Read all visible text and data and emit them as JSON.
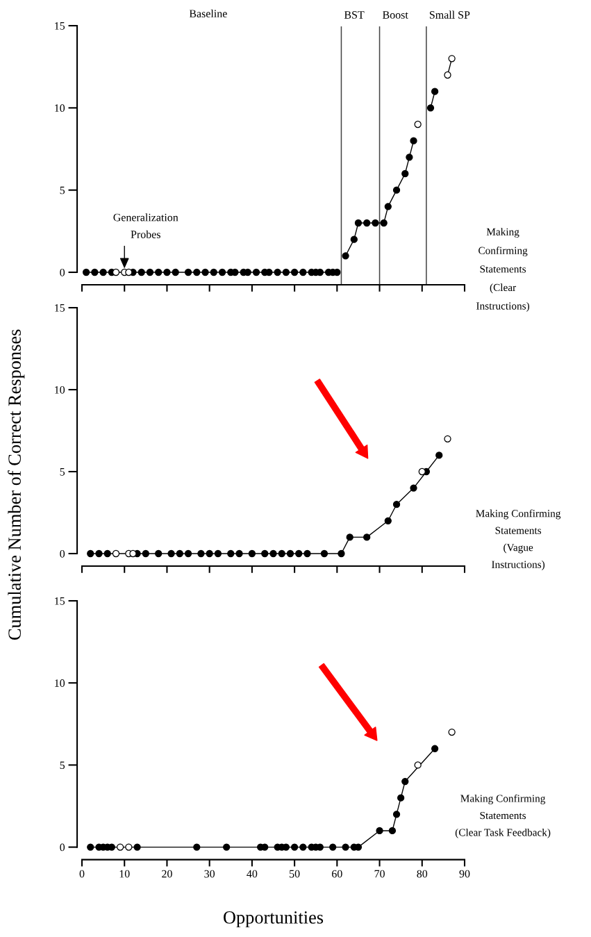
{
  "chart_data": [
    {
      "type": "line",
      "xlim": [
        0,
        90
      ],
      "xticks": [
        0,
        10,
        20,
        30,
        40,
        50,
        60,
        70,
        80,
        90
      ],
      "ylim": [
        0,
        15
      ],
      "yticks": [
        0,
        5,
        10,
        15
      ],
      "tick_labels": "y",
      "marker": "circle",
      "line_style": "solid",
      "grid": false,
      "legend": false,
      "series": [
        {
          "color": "#000000",
          "x": [
            1,
            3,
            5,
            7,
            12,
            14,
            16,
            18,
            20,
            22,
            25,
            27,
            29,
            31,
            33,
            35,
            36,
            38,
            39,
            41,
            43,
            44,
            46,
            48,
            50,
            52,
            54,
            55,
            56,
            58,
            59,
            60
          ],
          "values": [
            0,
            0,
            0,
            0,
            0,
            0,
            0,
            0,
            0,
            0,
            0,
            0,
            0,
            0,
            0,
            0,
            0,
            0,
            0,
            0,
            0,
            0,
            0,
            0,
            0,
            0,
            0,
            0,
            0,
            0,
            0,
            0
          ]
        },
        {
          "color": "#000000",
          "x": [
            62,
            64,
            65,
            67,
            69,
            71,
            72,
            74,
            76,
            77,
            78
          ],
          "values": [
            1,
            2,
            3,
            3,
            3,
            3,
            4,
            5,
            6,
            7,
            8
          ]
        },
        {
          "color": "#000000",
          "x": [
            82,
            83
          ],
          "values": [
            10,
            11
          ]
        },
        {
          "type": "scatter",
          "color": "#ffffff",
          "x": [
            8,
            10,
            11,
            79
          ],
          "values": [
            0,
            0,
            0,
            9
          ]
        },
        {
          "color": "#ffffff",
          "x": [
            86,
            87
          ],
          "values": [
            12,
            13
          ]
        }
      ],
      "ref_lines": [
        {
          "axis": "x",
          "value": 61,
          "label": "BST"
        },
        {
          "axis": "x",
          "value": 70,
          "label": "Boost"
        },
        {
          "axis": "x",
          "value": 81,
          "label": "Small SP"
        }
      ],
      "annotations": [
        "Baseline",
        {
          "text": "Generalization\nProbes",
          "x": 10,
          "y": 0
        },
        "Making\nConfirming\nStatements\n(Clear\nInstructions)"
      ]
    },
    {
      "type": "line",
      "xlim": [
        0,
        90
      ],
      "xticks": [
        0,
        10,
        20,
        30,
        40,
        50,
        60,
        70,
        80,
        90
      ],
      "ylim": [
        0,
        15
      ],
      "yticks": [
        0,
        5,
        10,
        15
      ],
      "tick_labels": "y",
      "marker": "circle",
      "line_style": "solid",
      "grid": false,
      "legend": false,
      "ylabel": "Cumulative Number of Correct Responses",
      "series": [
        {
          "color": "#000000",
          "x": [
            2,
            4,
            6,
            13,
            15,
            18,
            21,
            23,
            25,
            28,
            30,
            32,
            35,
            37,
            40,
            43,
            45,
            47,
            49,
            51,
            53,
            57,
            61,
            63,
            67,
            72,
            74,
            78,
            81,
            84
          ],
          "values": [
            0,
            0,
            0,
            0,
            0,
            0,
            0,
            0,
            0,
            0,
            0,
            0,
            0,
            0,
            0,
            0,
            0,
            0,
            0,
            0,
            0,
            0,
            0,
            1,
            1,
            2,
            3,
            4,
            5,
            6
          ]
        },
        {
          "type": "scatter",
          "color": "#ffffff",
          "x": [
            8,
            11,
            12,
            80,
            86
          ],
          "values": [
            0,
            0,
            0,
            5,
            7
          ]
        }
      ],
      "annotations": [
        "Making Confirming\nStatements\n(Vague\nInstructions)"
      ]
    },
    {
      "type": "line",
      "xlim": [
        0,
        90
      ],
      "xticks": [
        0,
        10,
        20,
        30,
        40,
        50,
        60,
        70,
        80,
        90
      ],
      "ylim": [
        0,
        15
      ],
      "yticks": [
        0,
        5,
        10,
        15
      ],
      "marker": "circle",
      "line_style": "solid",
      "grid": false,
      "legend": false,
      "xlabel": "Opportunities",
      "series": [
        {
          "color": "#000000",
          "x": [
            2,
            4,
            5,
            6,
            7,
            13,
            27,
            34,
            42,
            43,
            46,
            47,
            48,
            50,
            52,
            54,
            55,
            56,
            59,
            62,
            64,
            65,
            70,
            73,
            74,
            75,
            76,
            83
          ],
          "values": [
            0,
            0,
            0,
            0,
            0,
            0,
            0,
            0,
            0,
            0,
            0,
            0,
            0,
            0,
            0,
            0,
            0,
            0,
            0,
            0,
            0,
            0,
            1,
            1,
            2,
            3,
            4,
            6
          ]
        },
        {
          "type": "scatter",
          "color": "#ffffff",
          "x": [
            9,
            11,
            79,
            87
          ],
          "values": [
            0,
            0,
            5,
            7
          ]
        }
      ],
      "annotations": [
        "Making Confirming\nStatements\n(Clear Task Feedback)"
      ]
    }
  ]
}
